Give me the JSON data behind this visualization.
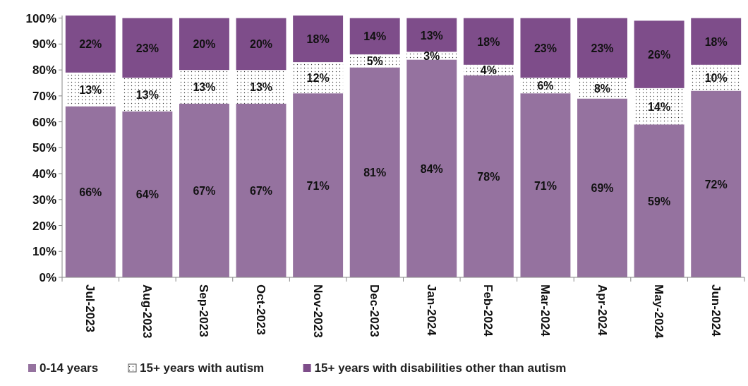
{
  "chart_data": {
    "type": "bar",
    "stacked": true,
    "categories": [
      "Jul-2023",
      "Aug-2023",
      "Sep-2023",
      "Oct-2023",
      "Nov-2023",
      "Dec-2023",
      "Jan-2024",
      "Feb-2024",
      "Mar-2024",
      "Apr-2024",
      "May-2024",
      "Jun-2024"
    ],
    "ylim": [
      0,
      101
    ],
    "yticks": [
      {
        "value": 0,
        "label": "0%"
      },
      {
        "value": 10,
        "label": "10%"
      },
      {
        "value": 20,
        "label": "20%"
      },
      {
        "value": 30,
        "label": "30%"
      },
      {
        "value": 40,
        "label": "40%"
      },
      {
        "value": 50,
        "label": "50%"
      },
      {
        "value": 60,
        "label": "60%"
      },
      {
        "value": 70,
        "label": "70%"
      },
      {
        "value": 80,
        "label": "80%"
      },
      {
        "value": 90,
        "label": "90%"
      },
      {
        "value": 100,
        "label": "100%"
      }
    ],
    "grid": false,
    "legend": "bottom",
    "series": [
      {
        "name": "0-14 years",
        "color": "#95729f",
        "values": [
          66,
          64,
          67,
          67,
          71,
          81,
          84,
          78,
          71,
          69,
          59,
          72
        ],
        "value_labels": [
          "66%",
          "64%",
          "67%",
          "67%",
          "71%",
          "81%",
          "84%",
          "78%",
          "71%",
          "69%",
          "59%",
          "72%"
        ]
      },
      {
        "name": "15+ years with autism",
        "color": "#ffffff",
        "values": [
          13,
          13,
          13,
          13,
          12,
          5,
          3,
          4,
          6,
          8,
          14,
          10
        ],
        "value_labels": [
          "13%",
          "13%",
          "13%",
          "13%",
          "12%",
          "5%",
          "3%",
          "4%",
          "6%",
          "8%",
          "14%",
          "10%"
        ]
      },
      {
        "name": "15+ years with disabilities other than autism",
        "color": "#7e4d8a",
        "values": [
          22,
          23,
          20,
          20,
          18,
          14,
          13,
          18,
          23,
          23,
          26,
          18
        ],
        "value_labels": [
          "22%",
          "23%",
          "20%",
          "20%",
          "18%",
          "14%",
          "13%",
          "18%",
          "23%",
          "23%",
          "26%",
          "18%"
        ]
      }
    ]
  }
}
